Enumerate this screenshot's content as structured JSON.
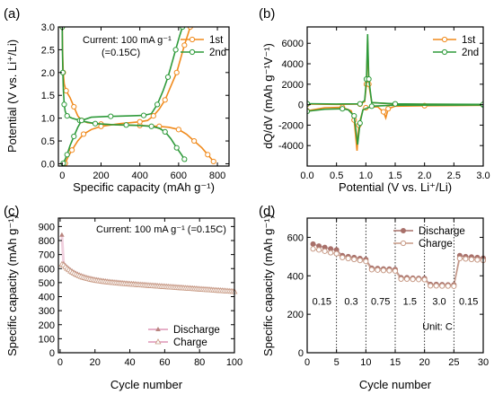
{
  "chart_data": [
    {
      "panel": "(a)",
      "type": "line",
      "xlabel": "Specific capacity (mAh g⁻¹)",
      "ylabel": "Potential (V vs. Li⁺/Li)",
      "xlim": [
        -20,
        860
      ],
      "ylim": [
        -0.05,
        3.0
      ],
      "xticks": [
        0,
        200,
        400,
        600,
        800
      ],
      "yticks": [
        0.0,
        0.5,
        1.0,
        1.5,
        2.0,
        2.5,
        3.0
      ],
      "annotations": [
        "Current: 100 mA g⁻¹",
        "(=0.15C)"
      ],
      "legend": [
        "1st",
        "2nd"
      ],
      "series": [
        {
          "name": "1st",
          "color": "#f08a1c",
          "segments": [
            [
              [
                0,
                3.0
              ],
              [
                2,
                2.4
              ],
              [
                5,
                2.0
              ],
              [
                10,
                1.75
              ],
              [
                20,
                1.6
              ],
              [
                40,
                1.45
              ],
              [
                60,
                1.25
              ],
              [
                80,
                1.05
              ],
              [
                100,
                0.95
              ],
              [
                130,
                0.9
              ],
              [
                200,
                0.87
              ],
              [
                300,
                0.85
              ],
              [
                400,
                0.84
              ],
              [
                450,
                0.83
              ],
              [
                500,
                0.82
              ],
              [
                550,
                0.8
              ],
              [
                600,
                0.75
              ],
              [
                640,
                0.65
              ],
              [
                680,
                0.5
              ],
              [
                720,
                0.35
              ],
              [
                750,
                0.2
              ],
              [
                770,
                0.1
              ],
              [
                780,
                0.05
              ]
            ],
            [
              [
                15,
                0.01
              ],
              [
                30,
                0.15
              ],
              [
                50,
                0.3
              ],
              [
                80,
                0.5
              ],
              [
                110,
                0.65
              ],
              [
                150,
                0.75
              ],
              [
                200,
                0.82
              ],
              [
                300,
                0.88
              ],
              [
                400,
                0.92
              ],
              [
                440,
                0.95
              ],
              [
                470,
                1.05
              ],
              [
                500,
                1.2
              ],
              [
                530,
                1.4
              ],
              [
                560,
                1.7
              ],
              [
                590,
                2.0
              ],
              [
                610,
                2.3
              ],
              [
                630,
                2.6
              ],
              [
                645,
                2.8
              ],
              [
                660,
                3.0
              ]
            ]
          ]
        },
        {
          "name": "2nd",
          "color": "#2e9a3a",
          "segments": [
            [
              [
                0,
                3.0
              ],
              [
                1,
                2.5
              ],
              [
                3,
                2.0
              ],
              [
                6,
                1.6
              ],
              [
                10,
                1.3
              ],
              [
                15,
                1.15
              ],
              [
                25,
                1.05
              ],
              [
                50,
                1.0
              ],
              [
                90,
                0.95
              ],
              [
                120,
                0.92
              ],
              [
                170,
                0.88
              ],
              [
                250,
                0.86
              ],
              [
                330,
                0.85
              ],
              [
                400,
                0.84
              ],
              [
                460,
                0.82
              ],
              [
                500,
                0.78
              ],
              [
                530,
                0.7
              ],
              [
                560,
                0.55
              ],
              [
                590,
                0.35
              ],
              [
                615,
                0.2
              ],
              [
                630,
                0.1
              ],
              [
                640,
                0.05
              ]
            ],
            [
              [
                5,
                0.01
              ],
              [
                15,
                0.1
              ],
              [
                25,
                0.2
              ],
              [
                40,
                0.4
              ],
              [
                60,
                0.6
              ],
              [
                80,
                0.8
              ],
              [
                100,
                0.95
              ],
              [
                150,
                1.02
              ],
              [
                250,
                1.04
              ],
              [
                350,
                1.05
              ],
              [
                420,
                1.06
              ],
              [
                460,
                1.1
              ],
              [
                490,
                1.3
              ],
              [
                520,
                1.6
              ],
              [
                545,
                1.9
              ],
              [
                565,
                2.2
              ],
              [
                585,
                2.5
              ],
              [
                605,
                2.8
              ],
              [
                620,
                3.0
              ]
            ]
          ]
        }
      ]
    },
    {
      "panel": "(b)",
      "type": "line",
      "xlabel": "Potential (V vs. Li⁺/Li)",
      "ylabel": "dQ/dV (mAh g⁻¹V⁻¹)",
      "xlim": [
        0.0,
        3.0
      ],
      "ylim": [
        -6000,
        7600
      ],
      "xticks": [
        0.0,
        0.5,
        1.0,
        1.5,
        2.0,
        2.5,
        3.0
      ],
      "yticks": [
        -4000,
        -2000,
        0,
        2000,
        4000,
        6000
      ],
      "legend": [
        "1st",
        "2nd"
      ],
      "series": [
        {
          "name": "1st",
          "color": "#f08a1c",
          "segments": [
            [
              [
                0.0,
                -600
              ],
              [
                0.3,
                -300
              ],
              [
                0.6,
                -250
              ],
              [
                0.75,
                -600
              ],
              [
                0.8,
                -1500
              ],
              [
                0.85,
                -4500
              ],
              [
                0.88,
                -2000
              ],
              [
                0.95,
                -500
              ],
              [
                1.0,
                -300
              ],
              [
                1.2,
                -200
              ],
              [
                1.3,
                -700
              ],
              [
                1.34,
                -1300
              ],
              [
                1.38,
                -400
              ],
              [
                1.5,
                -150
              ],
              [
                2.0,
                -100
              ],
              [
                3.0,
                -60
              ]
            ],
            [
              [
                0.0,
                50
              ],
              [
                0.5,
                30
              ],
              [
                0.9,
                50
              ],
              [
                0.98,
                300
              ],
              [
                1.01,
                2000
              ],
              [
                1.03,
                6200
              ],
              [
                1.05,
                2000
              ],
              [
                1.1,
                200
              ],
              [
                1.5,
                60
              ],
              [
                2.0,
                40
              ],
              [
                3.0,
                20
              ]
            ]
          ]
        },
        {
          "name": "2nd",
          "color": "#2e9a3a",
          "segments": [
            [
              [
                0.0,
                -650
              ],
              [
                0.3,
                -450
              ],
              [
                0.6,
                -400
              ],
              [
                0.7,
                -500
              ],
              [
                0.8,
                -1100
              ],
              [
                0.86,
                -3900
              ],
              [
                0.9,
                -1800
              ],
              [
                0.95,
                -500
              ],
              [
                1.1,
                -150
              ],
              [
                1.5,
                -50
              ],
              [
                3.0,
                -30
              ]
            ],
            [
              [
                0.0,
                100
              ],
              [
                0.5,
                60
              ],
              [
                0.9,
                80
              ],
              [
                0.98,
                400
              ],
              [
                1.01,
                2500
              ],
              [
                1.03,
                6900
              ],
              [
                1.05,
                2500
              ],
              [
                1.1,
                200
              ],
              [
                1.5,
                80
              ],
              [
                2.0,
                50
              ],
              [
                3.0,
                30
              ]
            ]
          ]
        }
      ]
    },
    {
      "panel": "(c)",
      "type": "scatter",
      "xlabel": "Cycle number",
      "ylabel": "Specific capacity (mAh g⁻¹)",
      "xlim": [
        -1,
        100
      ],
      "ylim": [
        0,
        960
      ],
      "xticks": [
        0,
        20,
        40,
        60,
        80,
        100
      ],
      "yticks": [
        0,
        100,
        200,
        300,
        400,
        500,
        600,
        700,
        800,
        900
      ],
      "annotations": [
        "Current: 100 mA g⁻¹ (=0.15C)"
      ],
      "legend": [
        "Discharge",
        "Charge"
      ],
      "series": [
        {
          "name": "Discharge",
          "color": "#b8847e",
          "marker": "filled-triangle",
          "curve": "first-point-then-decay",
          "first": [
            1,
            840
          ],
          "points_from": 2,
          "points_to": 100,
          "start": 635,
          "end": 440
        },
        {
          "name": "Charge",
          "color": "#c89a84",
          "marker": "open-triangle",
          "curve": "first-point-then-decay",
          "first": [
            1,
            630
          ],
          "points_from": 2,
          "points_to": 100,
          "start": 625,
          "end": 435
        }
      ]
    },
    {
      "panel": "(d)",
      "type": "scatter",
      "xlabel": "Cycle number",
      "ylabel": "Specific capacity (mAh g⁻¹)",
      "xlim": [
        0,
        30
      ],
      "ylim": [
        0,
        700
      ],
      "xticks": [
        0,
        5,
        10,
        15,
        20,
        25,
        30
      ],
      "yticks": [
        0,
        200,
        400,
        600
      ],
      "rate_labels": [
        "0.15",
        "0.3",
        "0.75",
        "1.5",
        "3.0",
        "0.15"
      ],
      "unit_label": "Unit:  C",
      "dividers": [
        5,
        10,
        15,
        20,
        25
      ],
      "legend": [
        "Discharge",
        "Charge"
      ],
      "series": [
        {
          "name": "Discharge",
          "color": "#a8706a",
          "marker": "filled-circle",
          "x": [
            1,
            2,
            3,
            4,
            5,
            6,
            7,
            8,
            9,
            10,
            11,
            12,
            13,
            14,
            15,
            16,
            17,
            18,
            19,
            20,
            21,
            22,
            23,
            24,
            25,
            26,
            27,
            28,
            29,
            30
          ],
          "values": [
            565,
            555,
            548,
            540,
            535,
            505,
            500,
            495,
            490,
            485,
            440,
            438,
            436,
            435,
            433,
            390,
            390,
            388,
            387,
            386,
            355,
            355,
            354,
            353,
            353,
            505,
            500,
            498,
            495,
            492
          ]
        },
        {
          "name": "Charge",
          "color": "#c79a86",
          "marker": "open-circle",
          "x": [
            1,
            2,
            3,
            4,
            5,
            6,
            7,
            8,
            9,
            10,
            11,
            12,
            13,
            14,
            15,
            16,
            17,
            18,
            19,
            20,
            21,
            22,
            23,
            24,
            25,
            26,
            27,
            28,
            29,
            30
          ],
          "values": [
            540,
            535,
            528,
            520,
            515,
            495,
            490,
            485,
            480,
            475,
            432,
            430,
            428,
            427,
            425,
            383,
            383,
            382,
            381,
            380,
            348,
            348,
            347,
            347,
            346,
            490,
            488,
            485,
            483,
            480
          ]
        }
      ]
    }
  ]
}
